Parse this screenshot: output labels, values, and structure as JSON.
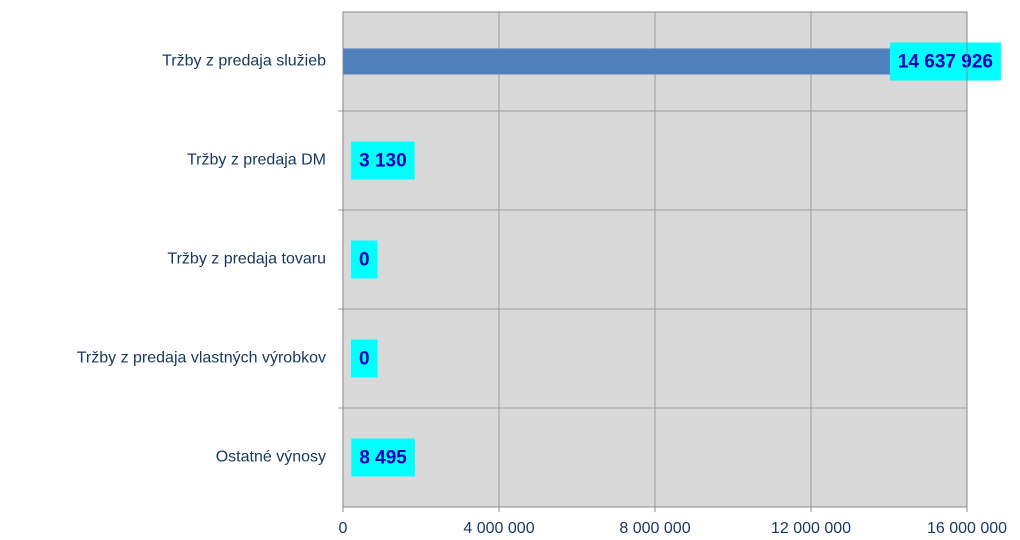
{
  "chart_data": {
    "type": "hbar",
    "categories": [
      "Tržby z predaja služieb",
      "Tržby z predaja DM",
      "Tržby z predaja tovaru",
      "Tržby z predaja vlastných výrobkov",
      "Ostatné výnosy"
    ],
    "values": [
      14637926,
      3130,
      0,
      0,
      8495
    ],
    "value_labels": [
      "14 637 926",
      "3 130",
      "0",
      "0",
      "8 495"
    ],
    "color": "#4f81bd",
    "xlim": [
      0,
      16000000
    ],
    "xticks": [
      0,
      {
        "value": 4000000,
        "label": "4 000 000"
      },
      {
        "value": 8000000,
        "label": "8 000 000"
      },
      {
        "value": 12000000,
        "label": "12 000 000"
      },
      {
        "value": 16000000,
        "label": "16 000 000"
      }
    ],
    "grid": true
  }
}
